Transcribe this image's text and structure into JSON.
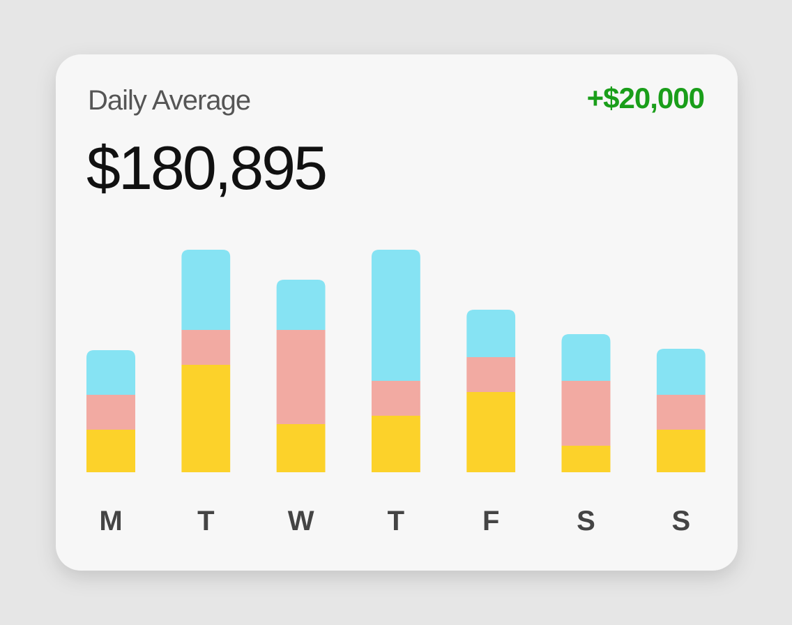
{
  "header": {
    "label": "Daily Average",
    "value": "$180,895",
    "change": "+$20,000"
  },
  "chart_data": {
    "type": "bar",
    "stacked": true,
    "categories": [
      "M",
      "T",
      "W",
      "T",
      "F",
      "S",
      "S"
    ],
    "series": [
      {
        "color": "#fcd22a",
        "values": [
          61,
          154,
          69,
          81,
          115,
          38,
          61
        ]
      },
      {
        "color": "#f2aaa2",
        "values": [
          50,
          50,
          135,
          50,
          50,
          93,
          50
        ]
      },
      {
        "color": "#86e3f3",
        "values": [
          64,
          115,
          72,
          188,
          68,
          67,
          66
        ]
      }
    ],
    "ylim": [
      0,
      319
    ]
  }
}
